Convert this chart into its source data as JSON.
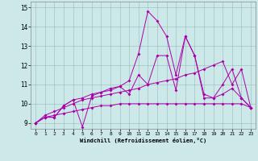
{
  "title": "",
  "xlabel": "Windchill (Refroidissement éolien,°C)",
  "background_color": "#cce8e8",
  "line_color": "#aa00aa",
  "xlim": [
    -0.5,
    23.5
  ],
  "ylim": [
    8.7,
    15.3
  ],
  "yticks": [
    9,
    10,
    11,
    12,
    13,
    14,
    15
  ],
  "xticks": [
    0,
    1,
    2,
    3,
    4,
    5,
    6,
    7,
    8,
    9,
    10,
    11,
    12,
    13,
    14,
    15,
    16,
    17,
    18,
    19,
    20,
    21,
    22,
    23
  ],
  "s1": [
    9.0,
    9.3,
    9.3,
    9.9,
    10.2,
    8.8,
    10.4,
    10.6,
    10.8,
    10.9,
    10.5,
    11.5,
    11.0,
    12.5,
    12.5,
    10.7,
    13.5,
    12.5,
    10.3,
    10.3,
    11.0,
    11.8,
    10.3,
    9.8
  ],
  "s2": [
    9.0,
    9.3,
    9.3,
    9.9,
    10.2,
    10.3,
    10.5,
    10.6,
    10.7,
    10.9,
    11.2,
    12.6,
    14.8,
    14.3,
    13.5,
    11.5,
    13.5,
    12.5,
    10.5,
    10.3,
    10.5,
    10.8,
    10.3,
    9.8
  ],
  "s3": [
    9.0,
    9.4,
    9.6,
    9.8,
    10.0,
    10.2,
    10.3,
    10.4,
    10.5,
    10.6,
    10.7,
    10.8,
    11.0,
    11.1,
    11.2,
    11.3,
    11.5,
    11.6,
    11.8,
    12.0,
    12.2,
    11.0,
    11.8,
    9.8
  ],
  "s4": [
    9.0,
    9.3,
    9.4,
    9.5,
    9.6,
    9.7,
    9.8,
    9.9,
    9.9,
    10.0,
    10.0,
    10.0,
    10.0,
    10.0,
    10.0,
    10.0,
    10.0,
    10.0,
    10.0,
    10.0,
    10.0,
    10.0,
    10.0,
    9.8
  ]
}
